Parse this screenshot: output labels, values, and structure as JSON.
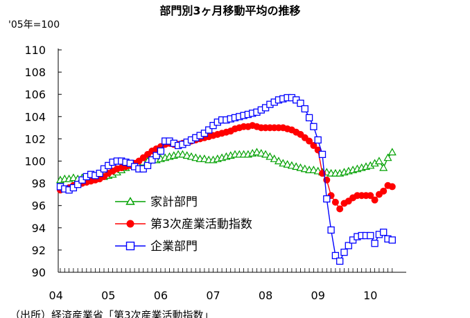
{
  "chart_data": {
    "type": "line",
    "title": "部門別3ヶ月移動平均の推移",
    "unit_label": "'05年=100",
    "source_note": "（出所）経済産業省「第3次産業活動指数」",
    "ylim": [
      90,
      110
    ],
    "y_ticks": [
      110,
      108,
      106,
      104,
      102,
      100,
      98,
      96,
      94,
      92,
      90
    ],
    "x_tick_labels": [
      "04",
      "05",
      "06",
      "07",
      "08",
      "09",
      "10"
    ],
    "x_start": "2004-01",
    "x_end": "2010-03",
    "legend_position": "center-left",
    "series": [
      {
        "name": "家計部門",
        "color": "#00a000",
        "marker": "triangle-open",
        "values": [
          98.3,
          98.4,
          98.4,
          98.5,
          98.4,
          98.5,
          98.5,
          98.6,
          98.6,
          98.7,
          98.6,
          98.7,
          98.8,
          99.0,
          99.2,
          99.4,
          99.6,
          99.7,
          99.8,
          99.9,
          100.0,
          100.1,
          100.1,
          100.2,
          100.3,
          100.4,
          100.5,
          100.6,
          100.6,
          100.5,
          100.4,
          100.3,
          100.2,
          100.2,
          100.1,
          100.1,
          100.2,
          100.3,
          100.4,
          100.5,
          100.6,
          100.6,
          100.6,
          100.6,
          100.7,
          100.8,
          100.7,
          100.6,
          100.4,
          100.2,
          100.0,
          99.8,
          99.7,
          99.6,
          99.5,
          99.4,
          99.3,
          99.2,
          99.2,
          99.1,
          99.0,
          99.0,
          98.9,
          98.9,
          98.9,
          99.0,
          99.1,
          99.2,
          99.3,
          99.4,
          99.5,
          99.6,
          99.8,
          100.0,
          99.4,
          100.3,
          100.8
        ]
      },
      {
        "name": "第3次産業活動指数",
        "color": "#ff0000",
        "marker": "circle-filled",
        "values": [
          97.4,
          97.5,
          97.6,
          97.8,
          97.9,
          98.0,
          98.1,
          98.2,
          98.3,
          98.4,
          98.6,
          98.9,
          99.1,
          99.3,
          99.4,
          99.5,
          99.6,
          99.8,
          100.0,
          100.3,
          100.6,
          100.9,
          101.1,
          101.3,
          101.5,
          101.6,
          101.5,
          101.5,
          101.6,
          101.7,
          101.8,
          101.9,
          102.0,
          102.1,
          102.2,
          102.3,
          102.4,
          102.5,
          102.6,
          102.7,
          102.9,
          103.0,
          103.1,
          103.1,
          103.2,
          103.1,
          103.0,
          103.0,
          103.0,
          103.0,
          103.0,
          103.0,
          102.9,
          102.8,
          102.6,
          102.4,
          102.1,
          101.8,
          101.4,
          101.0,
          98.9,
          98.3,
          96.9,
          96.3,
          95.7,
          96.2,
          96.4,
          96.7,
          96.9,
          96.9,
          96.9,
          96.9,
          96.5,
          97.0,
          97.3,
          97.8,
          97.7
        ]
      },
      {
        "name": "企業部門",
        "color": "#0000ff",
        "marker": "square-open",
        "values": [
          97.7,
          97.5,
          97.4,
          97.6,
          97.9,
          98.3,
          98.6,
          98.8,
          98.7,
          98.9,
          99.3,
          99.6,
          99.9,
          100.0,
          100.0,
          99.9,
          99.8,
          99.5,
          99.3,
          99.3,
          99.6,
          100.1,
          100.5,
          100.9,
          101.8,
          101.8,
          101.6,
          101.4,
          101.5,
          101.7,
          101.9,
          102.1,
          102.3,
          102.5,
          102.8,
          103.2,
          103.5,
          103.7,
          103.7,
          103.8,
          103.9,
          104.0,
          104.1,
          104.2,
          104.3,
          104.4,
          104.6,
          104.8,
          105.1,
          105.3,
          105.5,
          105.6,
          105.7,
          105.7,
          105.5,
          105.2,
          104.7,
          103.9,
          103.1,
          101.9,
          100.6,
          96.6,
          93.8,
          91.5,
          91.0,
          91.8,
          92.4,
          92.9,
          93.2,
          93.3,
          93.3,
          93.3,
          92.6,
          93.4,
          93.6,
          93.0,
          92.9
        ]
      }
    ]
  }
}
